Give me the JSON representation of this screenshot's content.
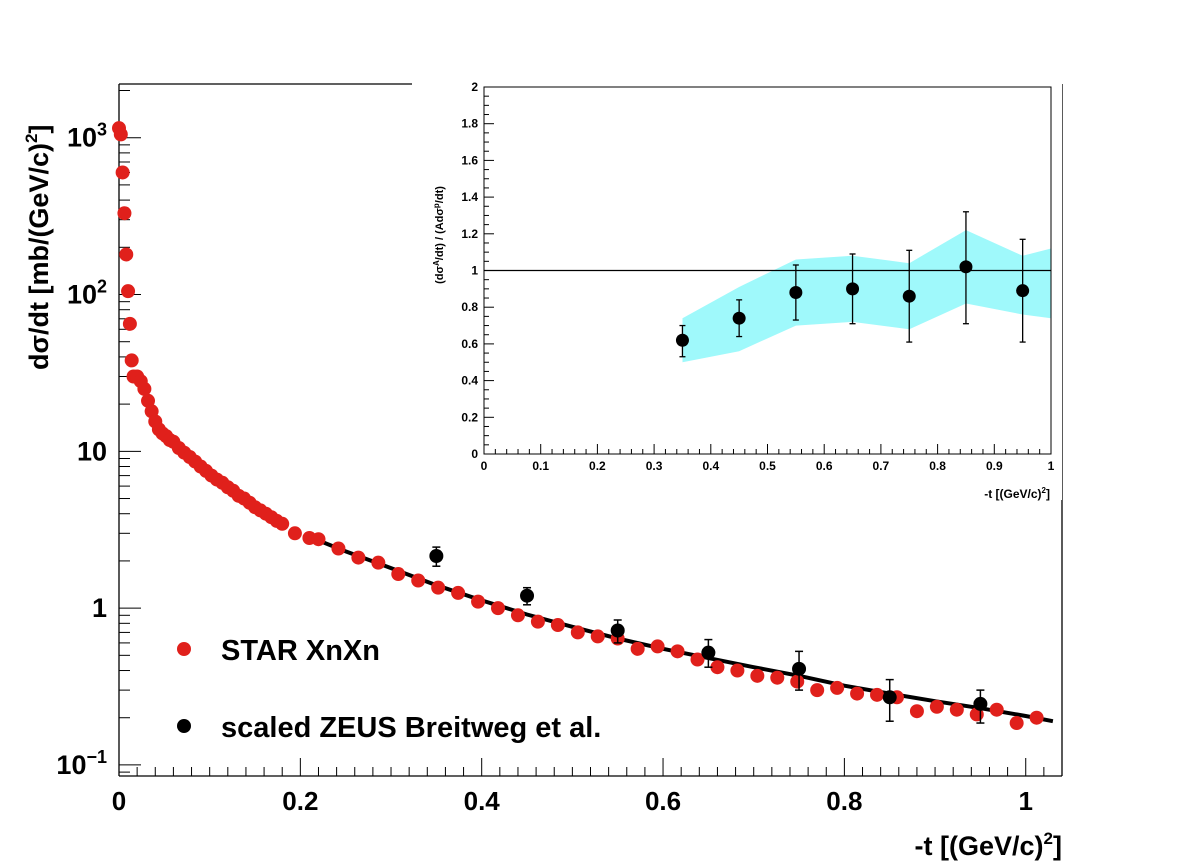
{
  "chart_data": [
    {
      "type": "scatter",
      "xlabel_main": "-t [(GeV/c)",
      "xlabel_sup": "2",
      "xlabel_close": "]",
      "ylabel_main": "dσ/dt [mb/(GeV/c)",
      "ylabel_sup": "2",
      "ylabel_close": "]",
      "y_scale": "log",
      "xlim": [
        0,
        1.04
      ],
      "ylim": [
        0.085,
        2200
      ],
      "x_ticks": [
        "0",
        "0.2",
        "0.4",
        "0.6",
        "0.8",
        "1"
      ],
      "x_tick_values": [
        0,
        0.2,
        0.4,
        0.6,
        0.8,
        1.0
      ],
      "y_ticks": [
        {
          "value": 0.1,
          "base": "10",
          "exp": "−1"
        },
        {
          "value": 1,
          "base": "1",
          "exp": ""
        },
        {
          "value": 10,
          "base": "10",
          "exp": ""
        },
        {
          "value": 100,
          "base": "10",
          "exp": "2"
        },
        {
          "value": 1000,
          "base": "10",
          "exp": "3"
        }
      ],
      "legend_position": "bottom-left",
      "series": [
        {
          "name": "STAR XnXn",
          "color": "#e0201b",
          "x": [
            0.0,
            0.002,
            0.004,
            0.006,
            0.008,
            0.01,
            0.012,
            0.014,
            0.016,
            0.02,
            0.024,
            0.028,
            0.032,
            0.036,
            0.04,
            0.044,
            0.048,
            0.052,
            0.056,
            0.06,
            0.066,
            0.072,
            0.078,
            0.084,
            0.09,
            0.096,
            0.102,
            0.108,
            0.114,
            0.12,
            0.126,
            0.132,
            0.138,
            0.144,
            0.15,
            0.156,
            0.162,
            0.168,
            0.174,
            0.18,
            0.194,
            0.21,
            0.22,
            0.242,
            0.264,
            0.286,
            0.308,
            0.33,
            0.352,
            0.374,
            0.396,
            0.418,
            0.44,
            0.462,
            0.484,
            0.506,
            0.528,
            0.55,
            0.572,
            0.594,
            0.616,
            0.638,
            0.66,
            0.682,
            0.704,
            0.726,
            0.748,
            0.77,
            0.792,
            0.814,
            0.836,
            0.858,
            0.88,
            0.902,
            0.924,
            0.946,
            0.968,
            0.99,
            1.012
          ],
          "y": [
            1150,
            1050,
            600,
            330,
            180,
            105,
            65,
            38,
            30,
            30,
            28,
            25,
            21,
            18,
            15.5,
            13.8,
            13.0,
            12.5,
            11.8,
            11.5,
            10.5,
            9.8,
            9.2,
            8.6,
            8.0,
            7.5,
            7.0,
            6.6,
            6.3,
            5.9,
            5.6,
            5.2,
            5.0,
            4.7,
            4.4,
            4.2,
            4.0,
            3.8,
            3.6,
            3.45,
            3.0,
            2.8,
            2.75,
            2.4,
            2.1,
            1.95,
            1.65,
            1.5,
            1.35,
            1.25,
            1.1,
            1.0,
            0.9,
            0.82,
            0.78,
            0.7,
            0.66,
            0.64,
            0.55,
            0.57,
            0.53,
            0.47,
            0.42,
            0.4,
            0.37,
            0.36,
            0.34,
            0.3,
            0.31,
            0.285,
            0.28,
            0.27,
            0.22,
            0.235,
            0.225,
            0.21,
            0.225,
            0.185,
            0.2
          ]
        },
        {
          "name": "scaled ZEUS Breitweg et al.",
          "color": "#000000",
          "x": [
            0.35,
            0.45,
            0.55,
            0.65,
            0.75,
            0.85,
            0.95
          ],
          "y": [
            2.15,
            1.2,
            0.72,
            0.52,
            0.41,
            0.27,
            0.245
          ],
          "err_low": [
            1.85,
            1.05,
            0.6,
            0.42,
            0.3,
            0.19,
            0.185
          ],
          "err_high": [
            2.45,
            1.35,
            0.84,
            0.63,
            0.53,
            0.35,
            0.3
          ]
        },
        {
          "name": "fit",
          "type": "line",
          "color": "#000000",
          "x": [
            0.21,
            0.25,
            0.3,
            0.35,
            0.4,
            0.45,
            0.5,
            0.55,
            0.6,
            0.65,
            0.7,
            0.75,
            0.8,
            0.85,
            0.9,
            0.95,
            1.0,
            1.03
          ],
          "y": [
            2.85,
            2.3,
            1.8,
            1.4,
            1.12,
            0.91,
            0.76,
            0.64,
            0.55,
            0.48,
            0.42,
            0.37,
            0.32,
            0.285,
            0.255,
            0.23,
            0.205,
            0.19
          ]
        }
      ]
    },
    {
      "type": "scatter",
      "xlabel_main": "-t [(GeV/c)",
      "xlabel_sup": "2",
      "xlabel_close": "]",
      "ylabel_parts": [
        "(dσ",
        "A",
        "/dt) / (Adσ",
        "p",
        "/dt)"
      ],
      "xlim": [
        0,
        1
      ],
      "ylim": [
        0,
        2
      ],
      "x_ticks": [
        "0",
        "0.1",
        "0.2",
        "0.3",
        "0.4",
        "0.5",
        "0.6",
        "0.7",
        "0.8",
        "0.9",
        "1"
      ],
      "y_ticks": [
        "0",
        "0.2",
        "0.4",
        "0.6",
        "0.8",
        "1",
        "1.2",
        "1.4",
        "1.6",
        "1.8",
        "2"
      ],
      "reference_line": 1,
      "band": {
        "color": "#9ff9fb",
        "x": [
          0.35,
          0.45,
          0.55,
          0.65,
          0.75,
          0.85,
          0.95,
          1.0
        ],
        "low": [
          0.5,
          0.56,
          0.7,
          0.72,
          0.68,
          0.82,
          0.76,
          0.74
        ],
        "high": [
          0.74,
          0.91,
          1.06,
          1.08,
          1.04,
          1.22,
          1.08,
          1.12
        ]
      },
      "series": [
        {
          "name": "ratio",
          "color": "#000000",
          "x": [
            0.35,
            0.45,
            0.55,
            0.65,
            0.75,
            0.85,
            0.95
          ],
          "y": [
            0.62,
            0.74,
            0.88,
            0.9,
            0.86,
            1.02,
            0.89
          ],
          "err_low": [
            0.53,
            0.64,
            0.73,
            0.71,
            0.61,
            0.71,
            0.61
          ],
          "err_high": [
            0.7,
            0.84,
            1.03,
            1.09,
            1.11,
            1.32,
            1.17
          ]
        }
      ]
    }
  ]
}
